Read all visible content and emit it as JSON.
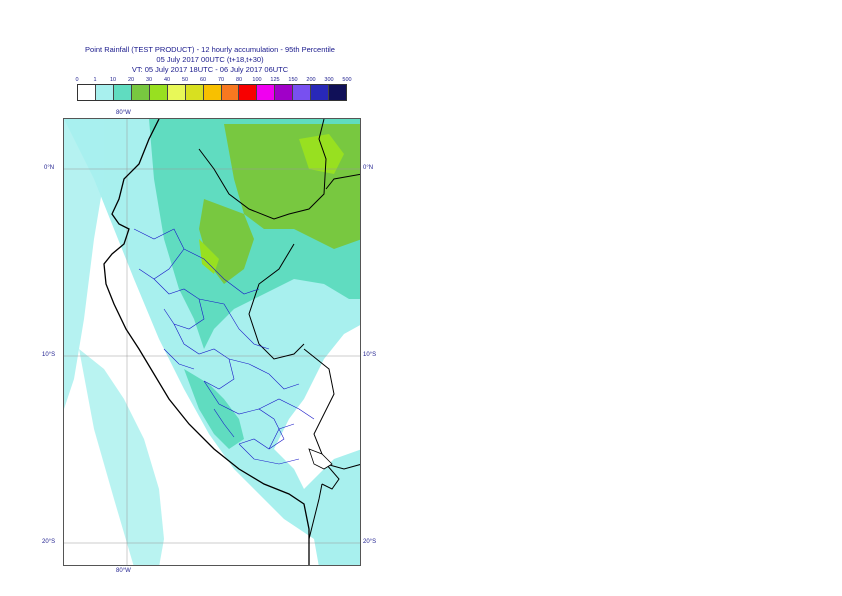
{
  "title": {
    "line1": "Point Rainfall (TEST PRODUCT) - 12 hourly accumulation - 95th Percentile",
    "line2": "05 July 2017 00UTC (t+18,t+30)",
    "line3": "VT: 05 July 2017 18UTC - 06 July 2017 06UTC"
  },
  "legend": {
    "thresholds": [
      "0",
      "1",
      "10",
      "20",
      "30",
      "40",
      "50",
      "60",
      "70",
      "80",
      "100",
      "125",
      "150",
      "200",
      "300",
      "500"
    ],
    "colors": [
      "#ffffff",
      "#a8f0ee",
      "#60dcc0",
      "#78c840",
      "#98e020",
      "#e8f858",
      "#d8e020",
      "#f8c000",
      "#f87820",
      "#f80000",
      "#f000f0",
      "#a000c8",
      "#7850f0",
      "#2828b8",
      "#101058"
    ]
  },
  "axes": {
    "lon_top": "80°W",
    "lon_bottom": "80°W",
    "lat_left": [
      "0°N",
      "10°S",
      "20°S"
    ],
    "lat_right": [
      "0°N",
      "10°S",
      "20°S"
    ]
  }
}
